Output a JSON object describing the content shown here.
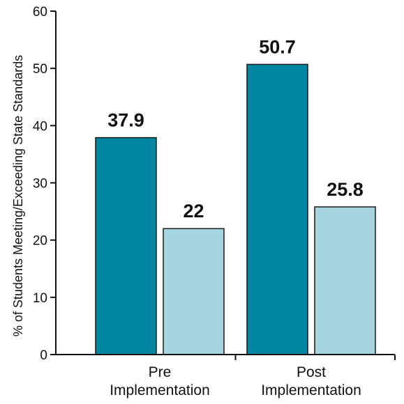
{
  "chart_data": {
    "type": "bar",
    "title": "",
    "xlabel": "",
    "ylabel": "% of Students Meeting/Exceeding State Standards",
    "ylim": [
      0,
      60
    ],
    "yticks": [
      0,
      10,
      20,
      30,
      40,
      50,
      60
    ],
    "categories": [
      "Pre\nImplementation",
      "Post\nImplementation"
    ],
    "series": [
      {
        "values": [
          37.9,
          50.7
        ],
        "color": "#00879f"
      },
      {
        "values": [
          22,
          25.8
        ],
        "color": "#a6d4df"
      }
    ],
    "grid": false,
    "legend": "none"
  }
}
